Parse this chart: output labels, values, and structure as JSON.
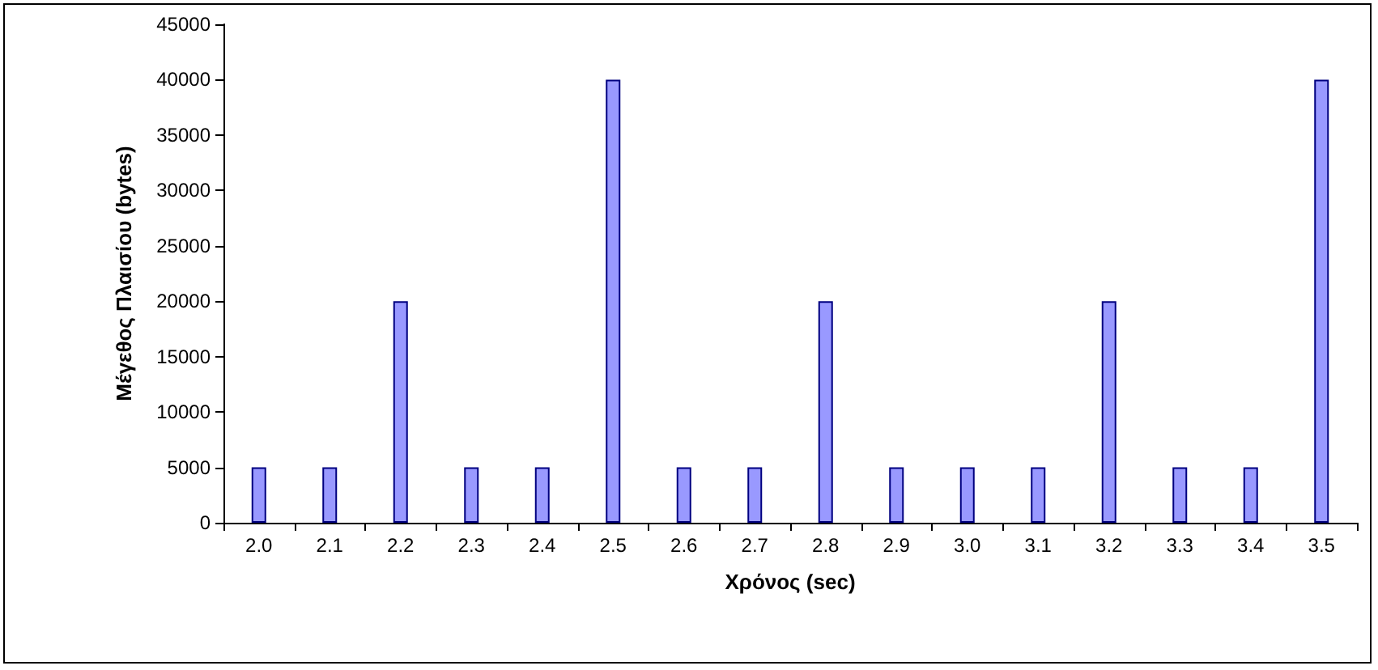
{
  "chart_data": {
    "type": "bar",
    "xlabel": "Χρόνος (sec)",
    "ylabel": "Μέγεθος Πλαισίου (bytes)",
    "categories": [
      "2.0",
      "2.1",
      "2.2",
      "2.3",
      "2.4",
      "2.5",
      "2.6",
      "2.7",
      "2.8",
      "2.9",
      "3.0",
      "3.1",
      "3.2",
      "3.3",
      "3.4",
      "3.5"
    ],
    "values": [
      5000,
      5000,
      20000,
      5000,
      5000,
      40000,
      5000,
      5000,
      20000,
      5000,
      5000,
      5000,
      20000,
      5000,
      5000,
      40000
    ],
    "color": "#9999ff",
    "ylim": [
      0,
      45000
    ],
    "yticks": [
      0,
      5000,
      10000,
      15000,
      20000,
      25000,
      30000,
      35000,
      40000,
      45000
    ],
    "grid": false
  }
}
